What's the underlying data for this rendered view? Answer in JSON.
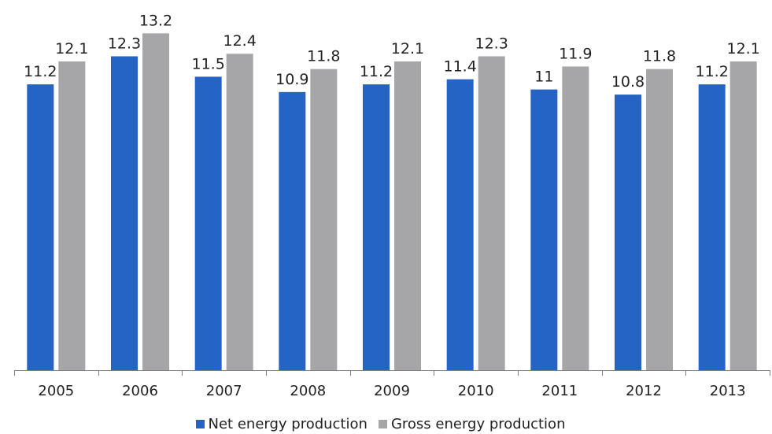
{
  "colors": {
    "net": "#2563c4",
    "gross": "#a6a6a8",
    "axis": "#7f7f7f",
    "text": "#222222"
  },
  "chart_data": {
    "type": "bar",
    "categories": [
      "2005",
      "2006",
      "2007",
      "2008",
      "2009",
      "2010",
      "2011",
      "2012",
      "2013"
    ],
    "series": [
      {
        "name": "Net energy production",
        "color": "#2563c4",
        "values": [
          11.2,
          12.3,
          11.5,
          10.9,
          11.2,
          11.4,
          11,
          10.8,
          11.2
        ],
        "labels": [
          "11.2",
          "12.3",
          "11.5",
          "10.9",
          "11.2",
          "11.4",
          "11",
          "10.8",
          "11.2"
        ]
      },
      {
        "name": "Gross energy production",
        "color": "#a6a6a8",
        "values": [
          12.1,
          13.2,
          12.4,
          11.8,
          12.1,
          12.3,
          11.9,
          11.8,
          12.1
        ],
        "labels": [
          "12.1",
          "13.2",
          "12.4",
          "11.8",
          "12.1",
          "12.3",
          "11.9",
          "11.8",
          "12.1"
        ]
      }
    ],
    "title": "",
    "xlabel": "",
    "ylabel": "",
    "ylim": [
      0,
      14
    ],
    "grid": false,
    "legend_position": "bottom"
  }
}
